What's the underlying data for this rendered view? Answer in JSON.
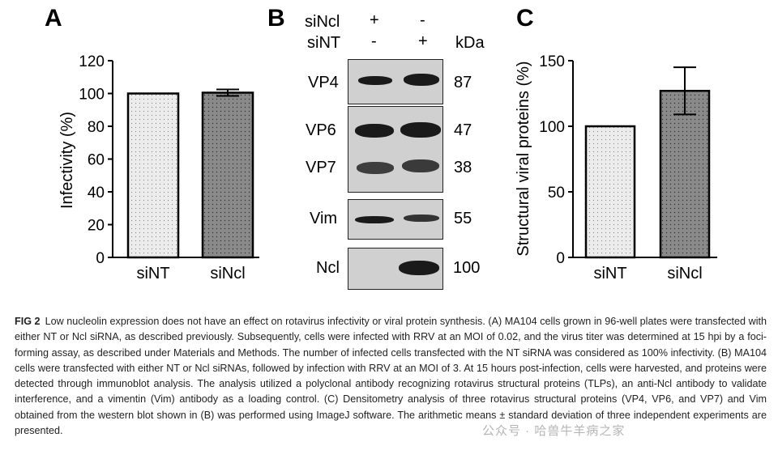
{
  "panels": {
    "A": {
      "letter": "A"
    },
    "B": {
      "letter": "B"
    },
    "C": {
      "letter": "C"
    }
  },
  "chart_data": [
    {
      "type": "bar",
      "panel": "A",
      "ylabel": "Infectivity (%)",
      "xlabel": "",
      "categories": [
        "siNT",
        "siNcl"
      ],
      "values": [
        100,
        100.5
      ],
      "error": [
        0,
        2
      ],
      "ylim": [
        0,
        120
      ],
      "yticks": [
        0,
        20,
        40,
        60,
        80,
        100,
        120
      ],
      "fills": [
        "#ececec",
        "#8a8a8a"
      ]
    },
    {
      "type": "bar",
      "panel": "C",
      "ylabel": "Structural viral proteins (%)",
      "xlabel": "",
      "categories": [
        "siNT",
        "siNcl"
      ],
      "values": [
        100,
        127
      ],
      "error": [
        0,
        18
      ],
      "ylim": [
        0,
        150
      ],
      "yticks": [
        0,
        50,
        100,
        150
      ],
      "fills": [
        "#ececec",
        "#8a8a8a"
      ]
    }
  ],
  "blot": {
    "row1_label": "siNcl",
    "row1_lane1": "+",
    "row1_lane2": "-",
    "row2_label": "siNT",
    "row2_lane1": "-",
    "row2_lane2": "+",
    "kda_label": "kDa",
    "bands": [
      {
        "name": "VP4",
        "kda": "87"
      },
      {
        "name": "VP6",
        "kda": "47"
      },
      {
        "name": "VP7",
        "kda": "38"
      },
      {
        "name": "Vim",
        "kda": "55"
      },
      {
        "name": "Ncl",
        "kda": "100"
      }
    ]
  },
  "caption": {
    "label": "FIG 2",
    "text": "Low nucleolin expression does not have an effect on rotavirus infectivity or viral protein synthesis. (A) MA104 cells grown in 96-well plates were transfected with either NT or Ncl siRNA, as described previously. Subsequently, cells were infected with RRV at an MOI of 0.02, and the virus titer was determined at 15 hpi by a foci-forming assay, as described under Materials and Methods. The number of infected cells transfected with the NT siRNA was considered as 100% infectivity. (B) MA104 cells were transfected with either NT or Ncl siRNAs, followed by infection with RRV at an MOI of 3. At 15 hours post-infection, cells were harvested, and proteins were detected through immunoblot analysis. The analysis utilized a polyclonal antibody recognizing rotavirus structural proteins (TLPs), an anti-Ncl antibody to validate interference, and a vimentin (Vim) antibody as a loading control. (C) Densitometry analysis of three rotavirus structural proteins (VP4, VP6, and VP7) and Vim obtained from the western blot shown in (B) was performed using ImageJ software. The arithmetic means ± standard deviation of three independent experiments are presented."
  },
  "watermark": "公众号 · 哈兽牛羊病之家"
}
